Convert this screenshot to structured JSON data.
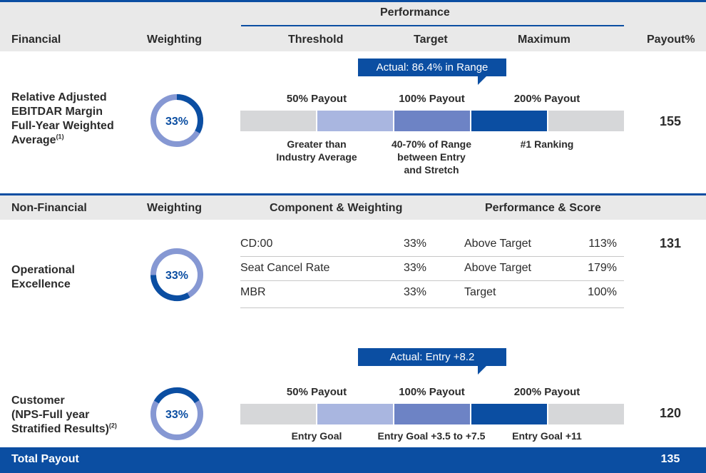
{
  "financial_header": {
    "performance": "Performance",
    "financial": "Financial",
    "weighting": "Weighting",
    "threshold": "Threshold",
    "target": "Target",
    "maximum": "Maximum",
    "payout_pct": "Payout%"
  },
  "ebitdar": {
    "label_line1": "Relative Adjusted",
    "label_line2": "EBITDAR Margin",
    "label_line3": "Full-Year Weighted",
    "label_line4": "Average",
    "footnote": "(1)",
    "weight": "33%",
    "weight_fraction": 0.33,
    "callout": "Actual: 86.4% in Range",
    "payout_labels": [
      "50% Payout",
      "100% Payout",
      "200% Payout"
    ],
    "desc_threshold_1": "Greater than",
    "desc_threshold_2": "Industry Average",
    "desc_target_1": "40-70% of Range",
    "desc_target_2": "between Entry",
    "desc_target_3": "and Stretch",
    "desc_max": "#1 Ranking",
    "payout": "155"
  },
  "nonfinancial_header": {
    "nonfinancial": "Non-Financial",
    "weighting": "Weighting",
    "component": "Component & Weighting",
    "perf_score": "Performance & Score"
  },
  "operational": {
    "label_line1": "Operational",
    "label_line2": "Excellence",
    "weight": "33%",
    "weight_fraction": 0.33,
    "payout": "131",
    "rows": [
      {
        "component": "CD:00",
        "weight": "33%",
        "performance": "Above Target",
        "score": "113%"
      },
      {
        "component": "Seat Cancel Rate",
        "weight": "33%",
        "performance": "Above Target",
        "score": "179%"
      },
      {
        "component": "MBR",
        "weight": "33%",
        "performance": "Target",
        "score": "100%"
      }
    ]
  },
  "customer": {
    "label_line1": "Customer",
    "label_line2": "(NPS-Full year",
    "label_line3": "Stratified Results)",
    "footnote": "(2)",
    "weight": "33%",
    "weight_fraction": 0.33,
    "callout": "Actual: Entry +8.2",
    "payout_labels": [
      "50% Payout",
      "100% Payout",
      "200% Payout"
    ],
    "desc_entry": "Entry Goal",
    "desc_target": "Entry Goal +3.5 to +7.5",
    "desc_max": "Entry Goal +11",
    "payout": "120"
  },
  "total": {
    "label": "Total Payout",
    "value": "135"
  },
  "colors": {
    "navy": "#0b4ea2",
    "light_blue": "#a9b6e0",
    "mid_blue": "#6d83c5",
    "grey_band": "#e9e9e9",
    "bar_grey": "#d6d7d9"
  }
}
